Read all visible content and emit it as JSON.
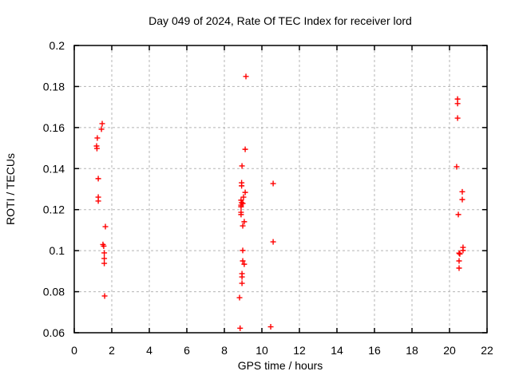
{
  "colors": {
    "background": "#ffffff",
    "marker": "#ff0000",
    "grid": "#b5b5b5",
    "axis": "#000000",
    "text": "#000000"
  },
  "chart_data": {
    "type": "scatter",
    "title": "Day 049 of 2024, Rate Of TEC Index for receiver lord",
    "xlabel": "GPS time / hours",
    "ylabel": "ROTI / TECUs",
    "xlim": [
      0,
      22
    ],
    "ylim": [
      0.06,
      0.2
    ],
    "xticks": [
      0,
      2,
      4,
      6,
      8,
      10,
      12,
      14,
      16,
      18,
      20,
      22
    ],
    "xtick_labels": [
      "0",
      "2",
      "4",
      "6",
      "8",
      "10",
      "12",
      "14",
      "16",
      "18",
      "20",
      "22"
    ],
    "yticks": [
      0.06,
      0.08,
      0.1,
      0.12,
      0.14,
      0.16,
      0.18,
      0.2
    ],
    "ytick_labels": [
      "0.06",
      "0.08",
      "0.1",
      "0.12",
      "0.14",
      "0.16",
      "0.18",
      "0.2"
    ],
    "grid": true,
    "legend_position": "none",
    "marker": {
      "shape": "plus",
      "color": "#ff0000",
      "size": 7
    },
    "series": [
      {
        "name": "ROTI",
        "points": [
          [
            1.49,
            0.1619
          ],
          [
            1.45,
            0.1592
          ],
          [
            1.23,
            0.1549
          ],
          [
            1.19,
            0.151
          ],
          [
            1.21,
            0.1498
          ],
          [
            1.28,
            0.1351
          ],
          [
            1.28,
            0.1261
          ],
          [
            1.28,
            0.1242
          ],
          [
            1.66,
            0.1117
          ],
          [
            1.53,
            0.103
          ],
          [
            1.57,
            0.1022
          ],
          [
            1.6,
            0.0989
          ],
          [
            1.6,
            0.0962
          ],
          [
            1.6,
            0.0938
          ],
          [
            1.62,
            0.0779
          ],
          [
            9.15,
            0.1849
          ],
          [
            9.11,
            0.1494
          ],
          [
            8.94,
            0.1413
          ],
          [
            8.92,
            0.1331
          ],
          [
            8.92,
            0.1316
          ],
          [
            9.11,
            0.1284
          ],
          [
            9.02,
            0.1261
          ],
          [
            8.89,
            0.1246
          ],
          [
            8.92,
            0.1234
          ],
          [
            8.98,
            0.123
          ],
          [
            8.89,
            0.1222
          ],
          [
            8.89,
            0.1214
          ],
          [
            8.89,
            0.1187
          ],
          [
            8.89,
            0.1176
          ],
          [
            9.06,
            0.1141
          ],
          [
            8.98,
            0.1121
          ],
          [
            8.98,
            0.1001
          ],
          [
            8.98,
            0.095
          ],
          [
            9.06,
            0.0934
          ],
          [
            8.94,
            0.0888
          ],
          [
            8.94,
            0.0872
          ],
          [
            8.94,
            0.0841
          ],
          [
            8.81,
            0.0771
          ],
          [
            8.84,
            0.0622
          ],
          [
            10.6,
            0.1327
          ],
          [
            10.6,
            0.1043
          ],
          [
            10.47,
            0.0629
          ],
          [
            20.43,
            0.1739
          ],
          [
            20.43,
            0.1717
          ],
          [
            20.43,
            0.1646
          ],
          [
            20.38,
            0.1409
          ],
          [
            20.68,
            0.1287
          ],
          [
            20.68,
            0.1249
          ],
          [
            20.47,
            0.1176
          ],
          [
            20.72,
            0.1016
          ],
          [
            20.72,
            0.1001
          ],
          [
            20.51,
            0.0988
          ],
          [
            20.55,
            0.0984
          ],
          [
            20.51,
            0.095
          ],
          [
            20.51,
            0.0915
          ]
        ]
      }
    ]
  }
}
